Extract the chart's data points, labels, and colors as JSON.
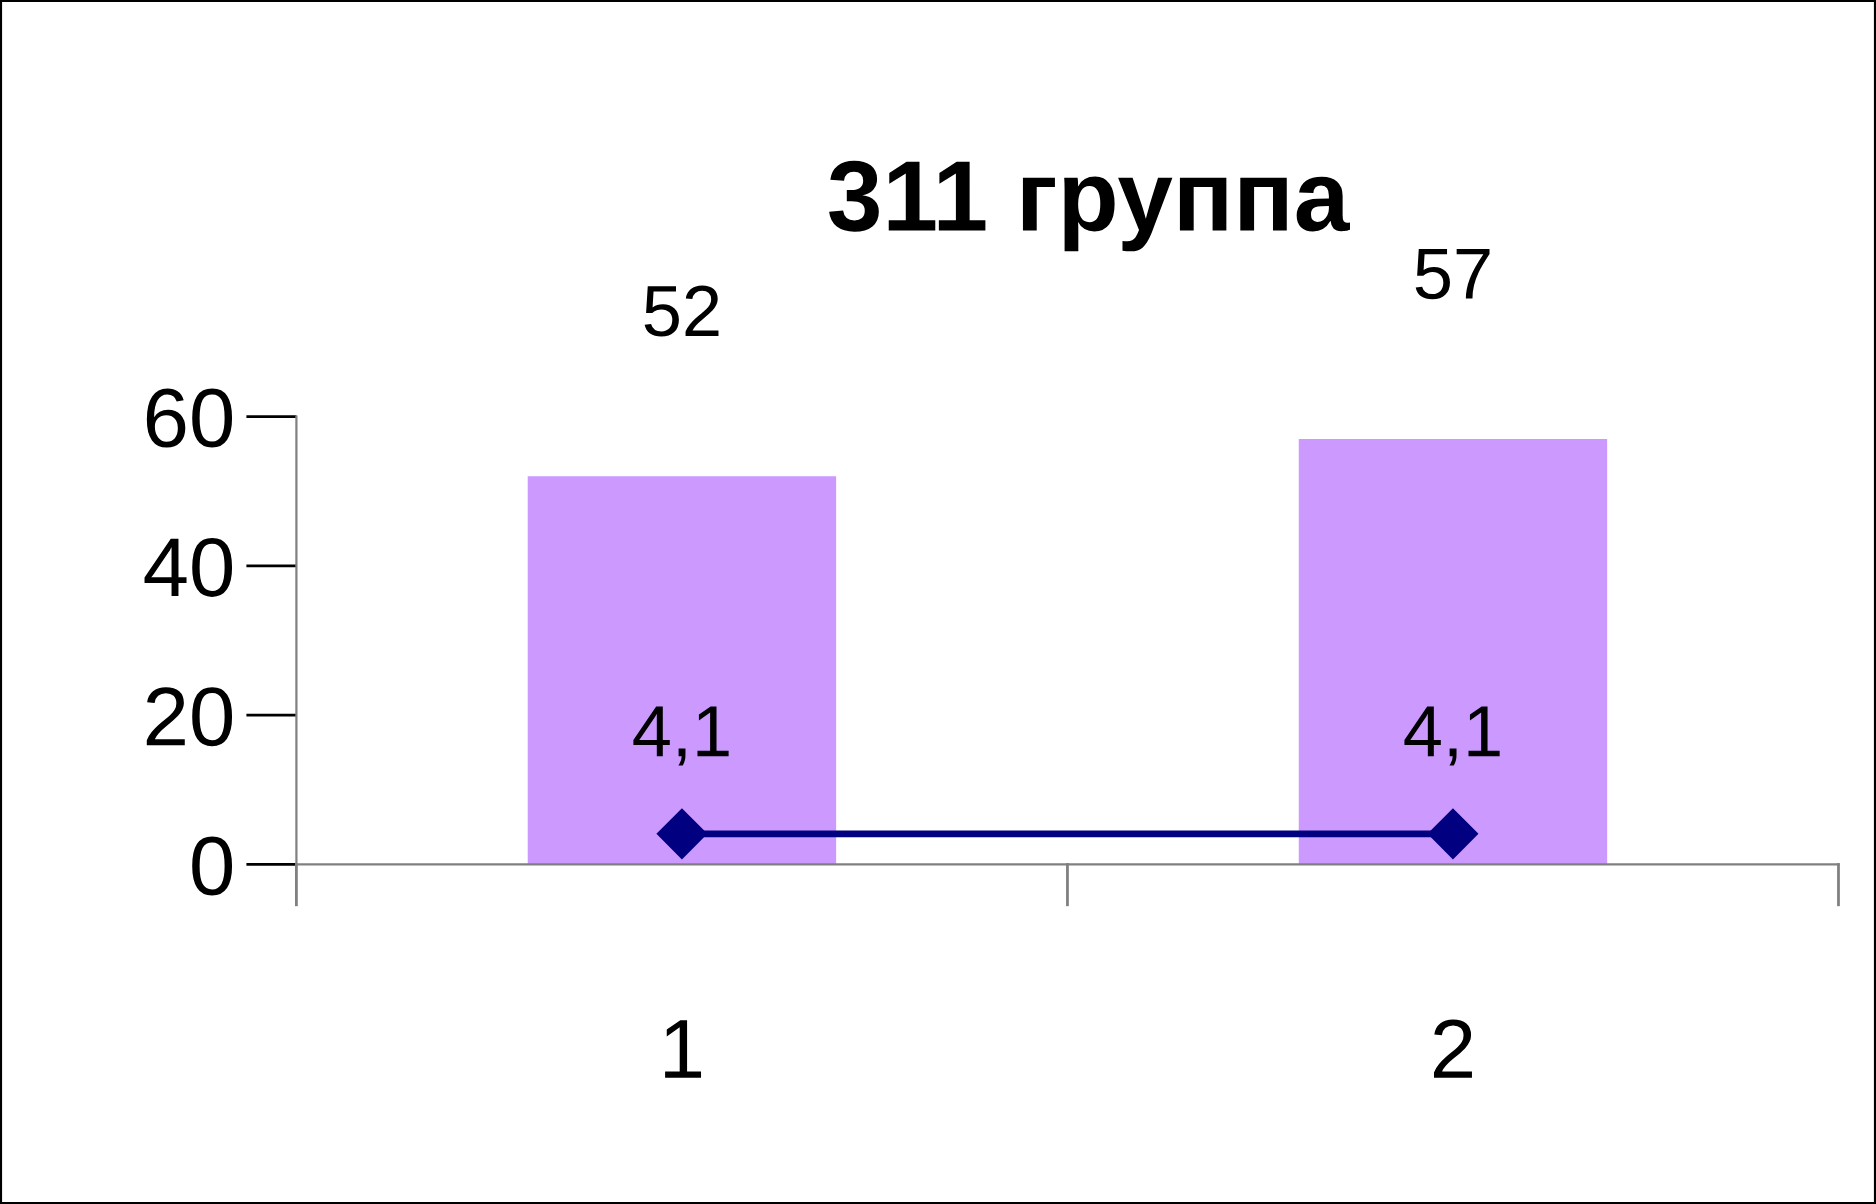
{
  "chart_data": {
    "type": "bar",
    "title": "311 группа",
    "categories": [
      "1",
      "2"
    ],
    "series": [
      {
        "color": "#cc99ff",
        "values": [
          52,
          57
        ],
        "value_labels": [
          "52",
          "57"
        ]
      },
      {
        "type": "line",
        "color": "#000080",
        "values": [
          4.1,
          4.1
        ],
        "value_labels": [
          "4,1",
          "4,1"
        ],
        "marker": "diamond",
        "line_style": "solid"
      }
    ],
    "ylim": [
      0,
      60
    ],
    "yticks": [
      0,
      20,
      40,
      60
    ],
    "grid": false,
    "legend": false
  }
}
